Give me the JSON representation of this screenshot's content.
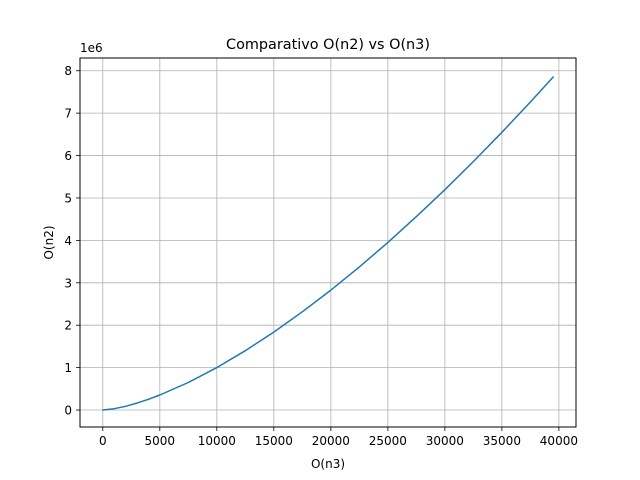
{
  "chart_data": {
    "type": "line",
    "title": "Comparativo O(n2) vs O(n3)",
    "xlabel": "O(n3)",
    "ylabel": "O(n2)",
    "y_offset_text": "1e6",
    "y_multiplier": 1000000,
    "xlim": [
      -2000,
      41500
    ],
    "ylim": [
      -0.4,
      8.3
    ],
    "xticks": [
      0,
      5000,
      10000,
      15000,
      20000,
      25000,
      30000,
      35000,
      40000
    ],
    "yticks": [
      0,
      1,
      2,
      3,
      4,
      5,
      6,
      7,
      8
    ],
    "grid": true,
    "series": [
      {
        "color": "#1f77b4",
        "x": [
          0,
          1000,
          2000,
          3000,
          4000,
          5000,
          7500,
          10000,
          12500,
          15000,
          17500,
          20000,
          22500,
          25000,
          27500,
          30000,
          32500,
          35000,
          37500,
          39500
        ],
        "y": [
          0,
          0.032,
          0.089,
          0.164,
          0.253,
          0.354,
          0.65,
          1.0,
          1.398,
          1.837,
          2.315,
          2.828,
          3.375,
          3.953,
          4.56,
          5.196,
          5.859,
          6.548,
          7.262,
          7.851
        ]
      }
    ]
  }
}
